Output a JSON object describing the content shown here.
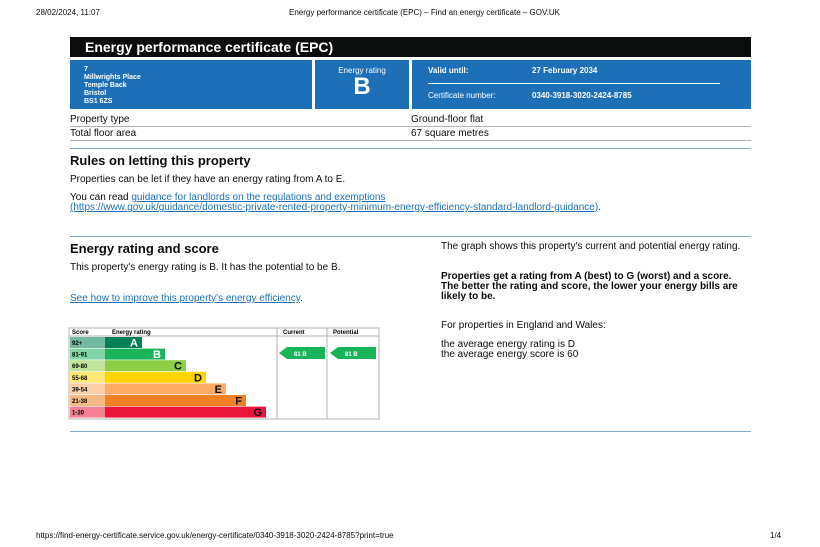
{
  "header": {
    "datetime": "28/02/2024, 11:07",
    "page_title": "Energy performance certificate (EPC) – Find an energy certificate – GOV.UK"
  },
  "title": "Energy performance certificate (EPC)",
  "address": [
    "7",
    "Millwrights Place",
    "Temple Back",
    "Bristol",
    "BS1 6ZS"
  ],
  "rating_box": {
    "label": "Energy rating",
    "value": "B"
  },
  "validity": {
    "valid_until_label": "Valid until:",
    "valid_until": "27 February 2034",
    "certificate_label": "Certificate number:",
    "certificate_number": "0340-3918-3020-2424-8785"
  },
  "property": {
    "rows": [
      [
        "Property type",
        "Ground-floor flat"
      ],
      [
        "Total floor area",
        "67 square metres"
      ]
    ]
  },
  "letting": {
    "heading": "Rules on letting this property",
    "paragraph": "Properties can be let if they have an energy rating from A to E.",
    "read_prefix": "You can read ",
    "link_text": "guidance for landlords on the regulations and exemptions",
    "link_url": "(https://www.gov.uk/guidance/domestic-private-rented-property-minimum-energy-efficiency-standard-landlord-guidance)",
    "read_suffix": "."
  },
  "rating": {
    "heading": "Energy rating and score",
    "paragraph": "This property's energy rating is B. It has the potential to be B.",
    "link_text": "See how to improve this property's energy efficiency",
    "link_suffix": "."
  },
  "epc_chart": {
    "headers": [
      "Score",
      "Energy rating",
      "Current",
      "Potential"
    ],
    "bands": [
      {
        "score": "92+",
        "letter": "A"
      },
      {
        "score": "81-91",
        "letter": "B"
      },
      {
        "score": "69-80",
        "letter": "C"
      },
      {
        "score": "55-68",
        "letter": "D"
      },
      {
        "score": "39-54",
        "letter": "E"
      },
      {
        "score": "21-38",
        "letter": "F"
      },
      {
        "score": "1-20",
        "letter": "G"
      }
    ],
    "current": "81  B",
    "potential": "81  B"
  },
  "side": {
    "graph_text": "The graph shows this property's current and potential energy rating.",
    "bold_text": "Properties get a rating from A (best) to G (worst) and a score. The better the rating and score, the lower your energy bills are likely to be.",
    "region_text": "For properties in England and Wales:",
    "average_rating": "the average energy rating is D",
    "average_score": "the average energy score is 60"
  },
  "footer": {
    "url": "https://find-energy-certificate.service.gov.uk/energy-certificate/0340-3918-3020-2424-8785?print=true",
    "page": "1/4"
  }
}
